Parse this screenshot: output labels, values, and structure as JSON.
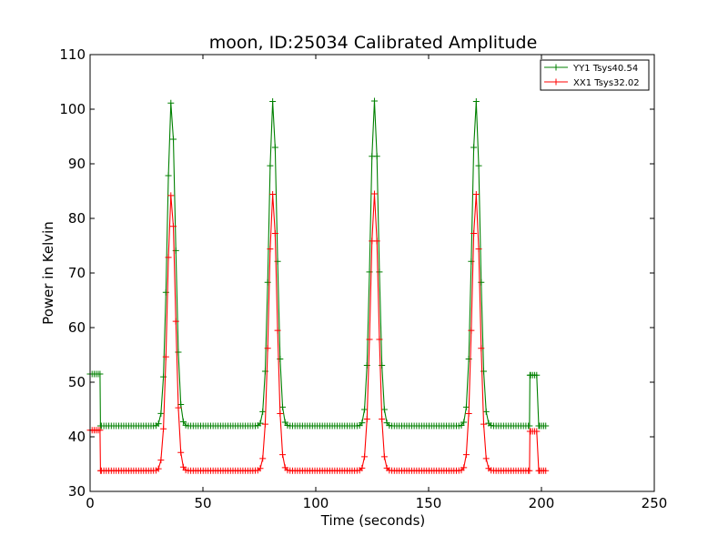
{
  "chart_data": {
    "type": "line",
    "title": "moon, ID:25034 Calibrated Amplitude",
    "xlabel": "Time (seconds)",
    "ylabel": "Power in Kelvin",
    "xlim": [
      0,
      250
    ],
    "ylim": [
      30,
      110
    ],
    "xticks": [
      0,
      50,
      100,
      150,
      200,
      250
    ],
    "yticks": [
      30,
      40,
      50,
      60,
      70,
      80,
      90,
      100,
      110
    ],
    "grid": false,
    "legend_position": "top-right",
    "peak_times": [
      36,
      81,
      126,
      171
    ],
    "series": [
      {
        "name": "YY1 Tsys40.54",
        "color": "#008000",
        "start_level": 51.5,
        "baseline": 42,
        "peak": 101.5,
        "end_level": 51.3,
        "final_level": 42
      },
      {
        "name": "XX1 Tsys32.02",
        "color": "#ff0000",
        "start_level": 41.2,
        "baseline": 33.8,
        "peak": 84.5,
        "end_level": 41,
        "final_level": 33.8
      }
    ]
  }
}
